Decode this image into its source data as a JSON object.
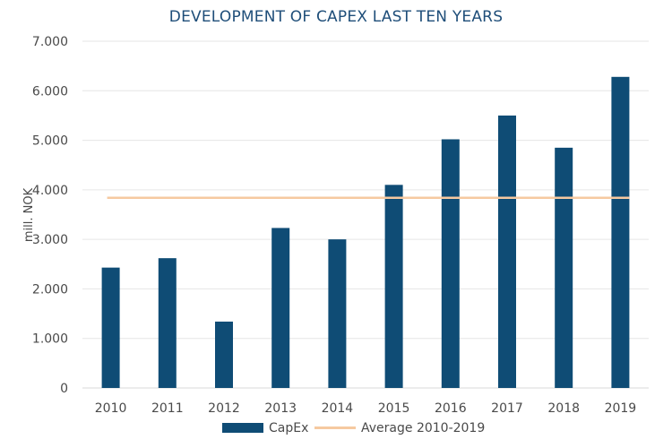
{
  "chart_data": {
    "type": "bar",
    "title": "DEVELOPMENT OF CAPEX LAST TEN YEARS",
    "xlabel": "",
    "ylabel": "mill. NOK",
    "categories": [
      "2010",
      "2011",
      "2012",
      "2013",
      "2014",
      "2015",
      "2016",
      "2017",
      "2018",
      "2019"
    ],
    "series": [
      {
        "name": "CapEx",
        "type": "bar",
        "color": "#0f4c75",
        "values": [
          2430,
          2620,
          1340,
          3230,
          3000,
          4100,
          5020,
          5500,
          4850,
          6280
        ]
      },
      {
        "name": "Average 2010-2019",
        "type": "line",
        "color": "#f6c9a0",
        "values": [
          3840,
          3840,
          3840,
          3840,
          3840,
          3840,
          3840,
          3840,
          3840,
          3840
        ]
      }
    ],
    "ylim": [
      0,
      7000
    ],
    "yticks": [
      0,
      1000,
      2000,
      3000,
      4000,
      5000,
      6000,
      7000
    ],
    "ytick_labels": [
      "0",
      "1.000",
      "2.000",
      "3.000",
      "4.000",
      "5.000",
      "6.000",
      "7.000"
    ],
    "grid": true,
    "legend_position": "bottom"
  }
}
